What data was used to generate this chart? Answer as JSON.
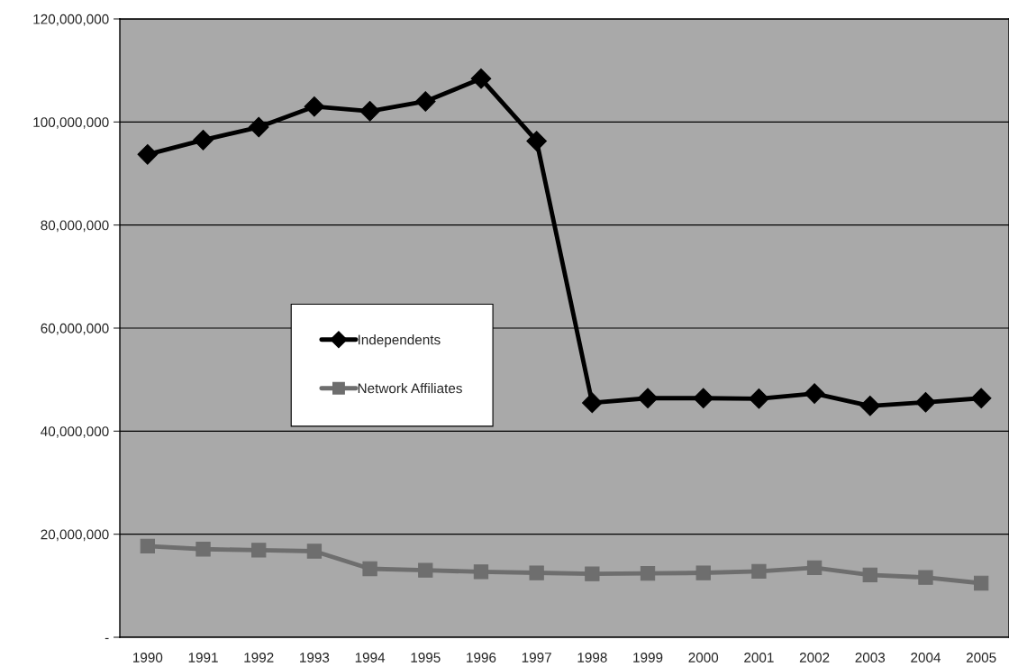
{
  "chart_data": {
    "type": "line",
    "categories": [
      "1990",
      "1991",
      "1992",
      "1993",
      "1994",
      "1995",
      "1996",
      "1997",
      "1998",
      "1999",
      "2000",
      "2001",
      "2002",
      "2003",
      "2004",
      "2005"
    ],
    "series": [
      {
        "name": "Independents",
        "color": "#000000",
        "marker": "diamond",
        "values": [
          93700000,
          96500000,
          99000000,
          103000000,
          102100000,
          104000000,
          108400000,
          96300000,
          45500000,
          46400000,
          46400000,
          46300000,
          47300000,
          44900000,
          45600000,
          46400000
        ]
      },
      {
        "name": "Network Affiliates",
        "color": "#6e6e6e",
        "marker": "square",
        "values": [
          17700000,
          17100000,
          16900000,
          16700000,
          13300000,
          13000000,
          12700000,
          12500000,
          12300000,
          12400000,
          12500000,
          12800000,
          13500000,
          12100000,
          11600000,
          10500000
        ]
      }
    ],
    "ylim": [
      0,
      120000000
    ],
    "yticks": [
      {
        "value": 0,
        "label": "-"
      },
      {
        "value": 20000000,
        "label": "20,000,000"
      },
      {
        "value": 40000000,
        "label": "40,000,000"
      },
      {
        "value": 60000000,
        "label": "60,000,000"
      },
      {
        "value": 80000000,
        "label": "80,000,000"
      },
      {
        "value": 100000000,
        "label": "100,000,000"
      },
      {
        "value": 120000000,
        "label": "120,000,000"
      }
    ],
    "grid": "y",
    "legend": "left"
  }
}
